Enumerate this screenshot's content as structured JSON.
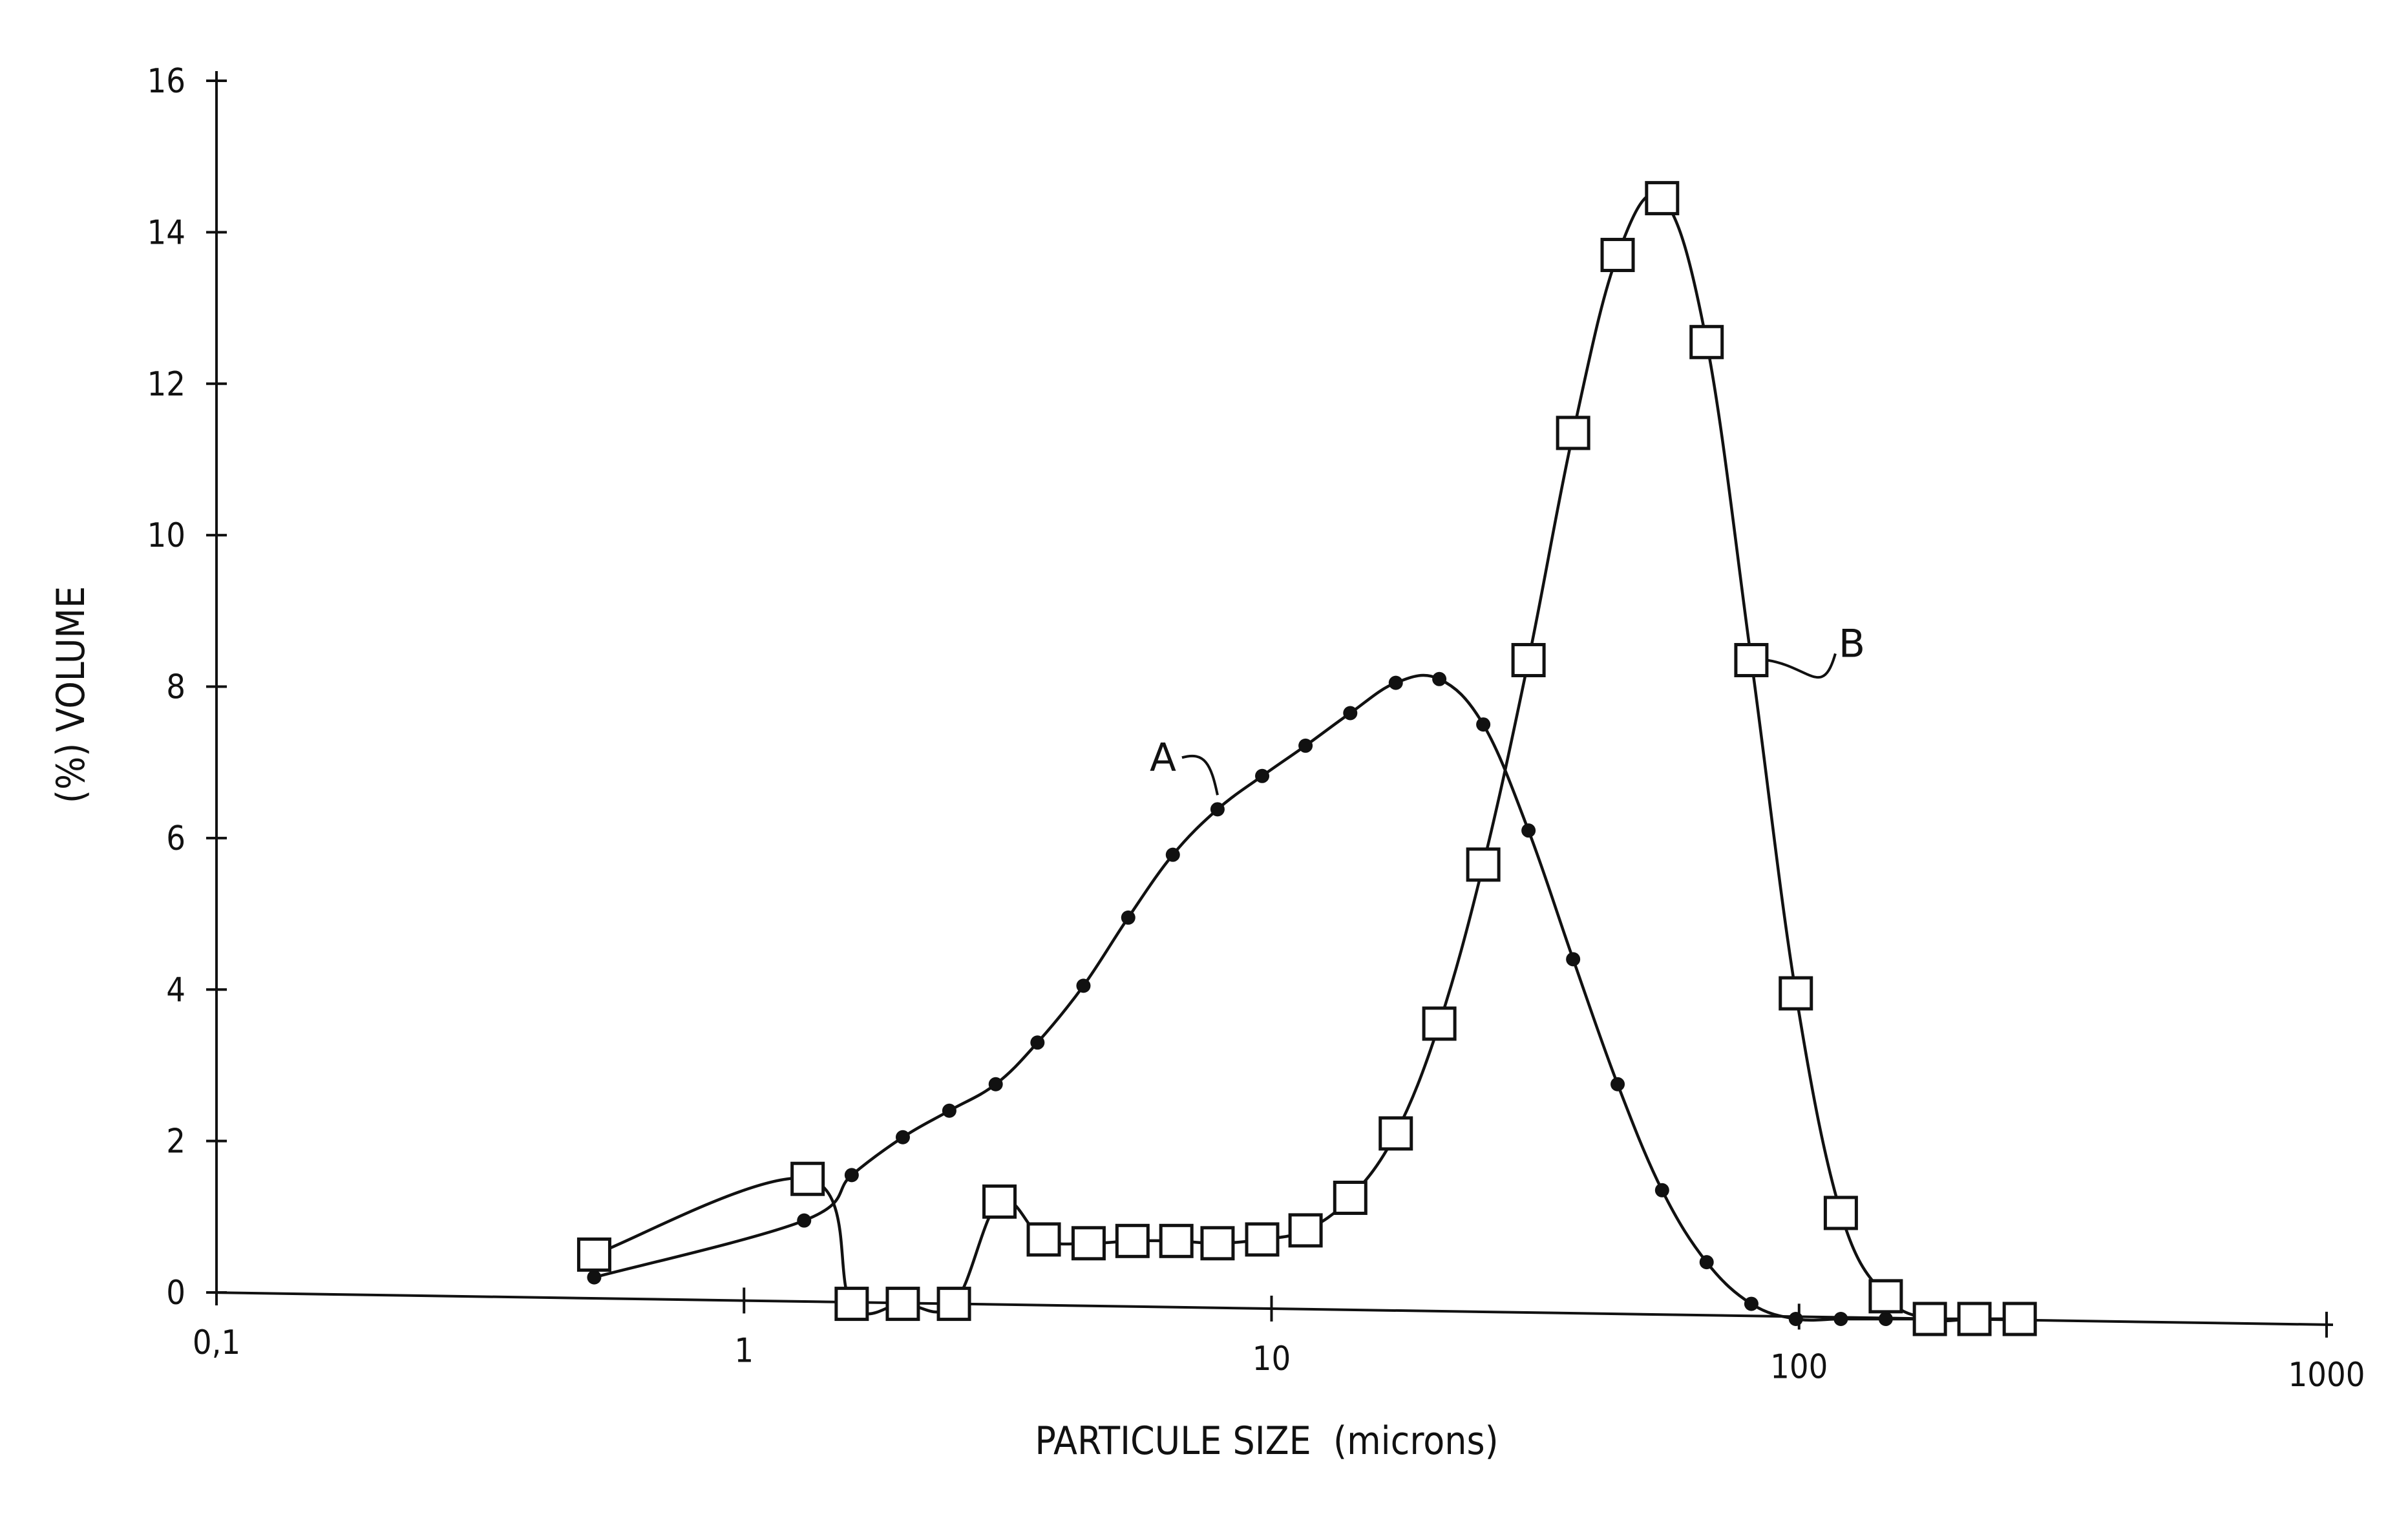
{
  "chart_data": {
    "type": "line",
    "xlabel": "PARTICULE SIZE  (microns)",
    "ylabel": "(%) VOLUME",
    "x_scale": "log",
    "xlim": [
      0.1,
      1000
    ],
    "ylim": [
      0,
      16
    ],
    "x_ticks": [
      "0,1",
      "1",
      "10",
      "100",
      "1000"
    ],
    "y_ticks": [
      "0",
      "2",
      "4",
      "6",
      "8",
      "10",
      "12",
      "14",
      "16"
    ],
    "grid": false,
    "series": [
      {
        "name": "A",
        "marker": "filled-circle",
        "points": [
          [
            0.52,
            0.2
          ],
          [
            1.3,
            0.95
          ],
          [
            1.6,
            1.55
          ],
          [
            2.0,
            2.05
          ],
          [
            2.45,
            2.4
          ],
          [
            3.0,
            2.75
          ],
          [
            3.6,
            3.3
          ],
          [
            4.4,
            4.05
          ],
          [
            5.35,
            4.95
          ],
          [
            6.5,
            5.78
          ],
          [
            7.9,
            6.38
          ],
          [
            9.6,
            6.82
          ],
          [
            11.6,
            7.22
          ],
          [
            14.1,
            7.65
          ],
          [
            17.2,
            8.05
          ],
          [
            20.8,
            8.1
          ],
          [
            25.2,
            7.5
          ],
          [
            30.7,
            6.1
          ],
          [
            37.3,
            4.4
          ],
          [
            45.3,
            2.75
          ],
          [
            55.0,
            1.35
          ],
          [
            66.8,
            0.4
          ],
          [
            81.2,
            -0.15
          ],
          [
            98.6,
            -0.35
          ],
          [
            120,
            -0.35
          ],
          [
            146,
            -0.35
          ],
          [
            177,
            -0.35
          ],
          [
            215,
            -0.35
          ],
          [
            262,
            -0.35
          ]
        ]
      },
      {
        "name": "B",
        "marker": "open-square",
        "points": [
          [
            0.52,
            0.5
          ],
          [
            1.32,
            1.5
          ],
          [
            1.6,
            -0.15
          ],
          [
            2.0,
            -0.15
          ],
          [
            2.5,
            -0.15
          ],
          [
            3.05,
            1.2
          ],
          [
            3.7,
            0.7
          ],
          [
            4.5,
            0.65
          ],
          [
            5.45,
            0.68
          ],
          [
            6.6,
            0.68
          ],
          [
            7.9,
            0.65
          ],
          [
            9.6,
            0.7
          ],
          [
            11.6,
            0.82
          ],
          [
            14.1,
            1.25
          ],
          [
            17.2,
            2.1
          ],
          [
            20.8,
            3.55
          ],
          [
            25.2,
            5.65
          ],
          [
            30.7,
            8.35
          ],
          [
            37.3,
            11.35
          ],
          [
            45.3,
            13.7
          ],
          [
            55.0,
            14.45
          ],
          [
            66.8,
            12.55
          ],
          [
            81.2,
            8.35
          ],
          [
            98.6,
            3.95
          ],
          [
            120,
            1.05
          ],
          [
            146,
            -0.05
          ],
          [
            177,
            -0.35
          ],
          [
            215,
            -0.35
          ],
          [
            262,
            -0.35
          ]
        ]
      }
    ]
  }
}
